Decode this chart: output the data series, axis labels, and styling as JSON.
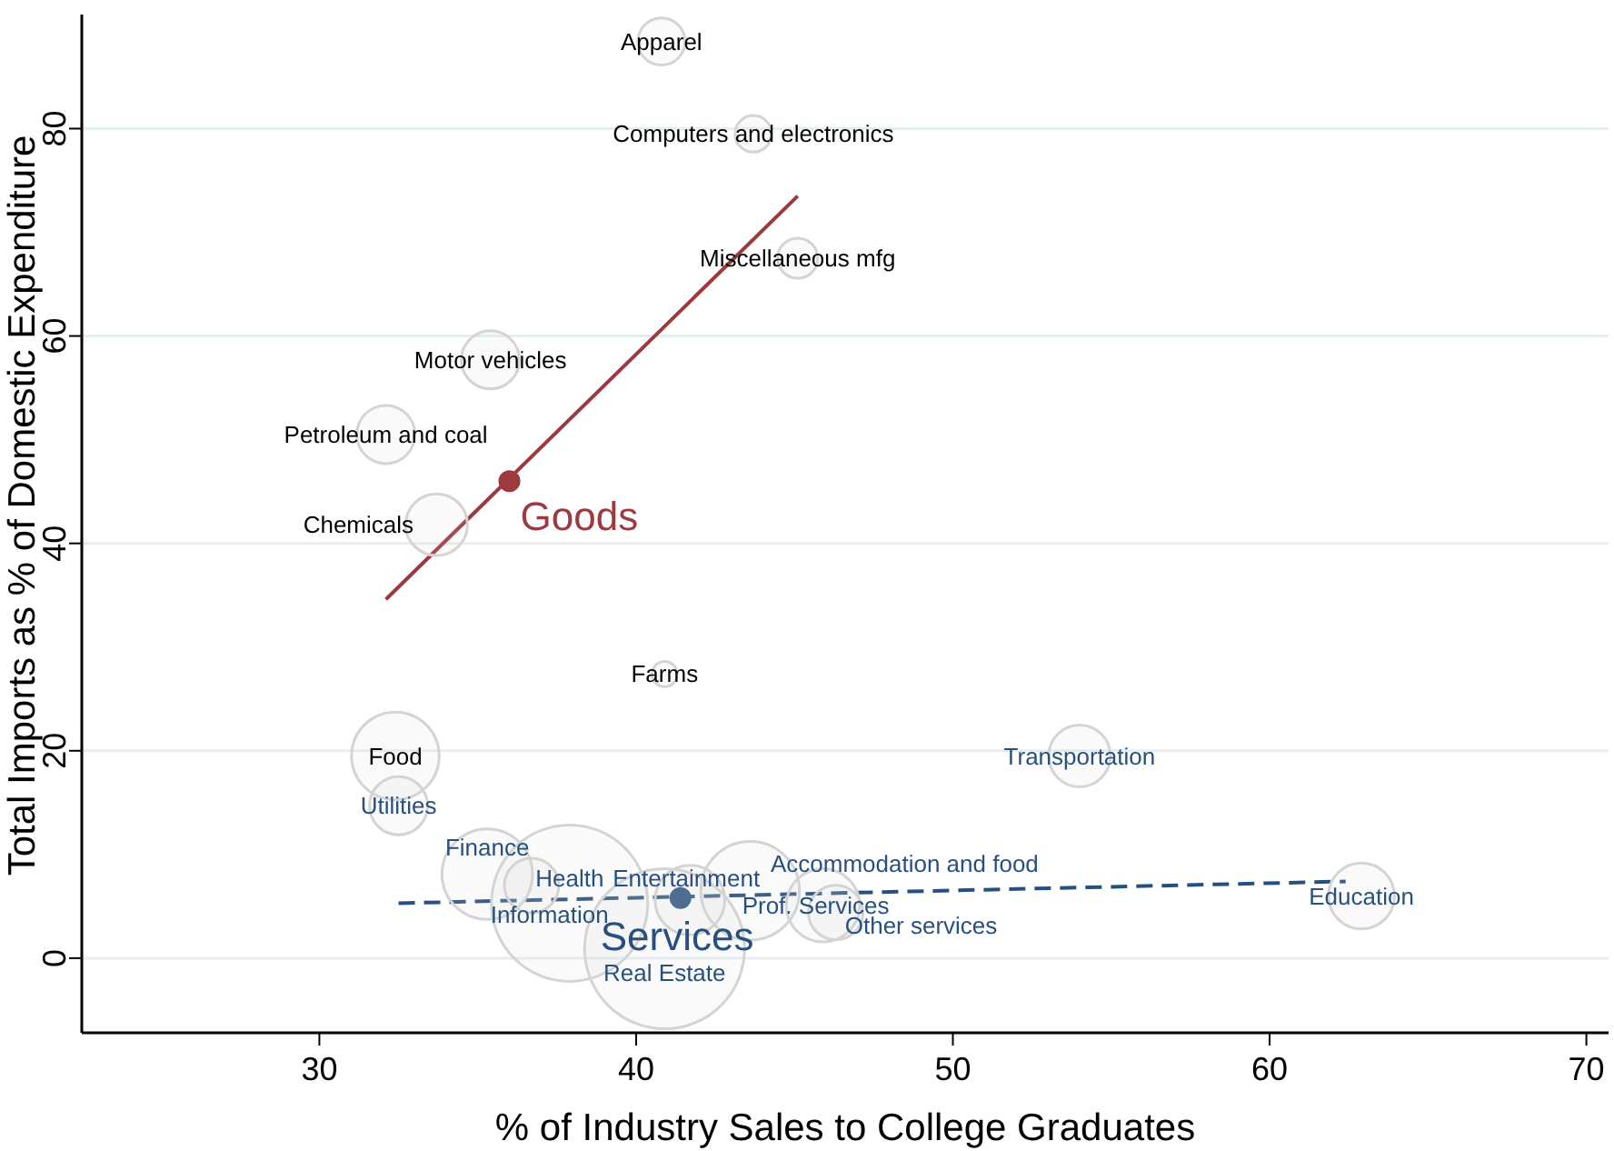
{
  "chart_data": {
    "type": "scatter",
    "xlabel": "% of Industry Sales to College Graduates",
    "ylabel": "Total Imports as % of Domestic Expenditure",
    "xlim": [
      22.5,
      70.7
    ],
    "ylim": [
      -7.2,
      91
    ],
    "xticks": [
      30,
      40,
      50,
      60,
      70
    ],
    "yticks": [
      0,
      20,
      40,
      60,
      80
    ],
    "grid": "y",
    "annotations": [
      {
        "text": "Apparel",
        "x": 40.8,
        "y": 88.4
      },
      {
        "text": "Computers and electronics",
        "x": 43.7,
        "y": 79.5
      },
      {
        "text": "Miscellaneous mfg",
        "x": 45.1,
        "y": 67.5
      },
      {
        "text": "Motor vehicles",
        "x": 35.4,
        "y": 57.7
      },
      {
        "text": "Petroleum and coal",
        "x": 32.1,
        "y": 50.5
      },
      {
        "text": "Chemicals",
        "x": 33.7,
        "y": 41.8
      },
      {
        "text": "Farms",
        "x": 40.9,
        "y": 27.4
      },
      {
        "text": "Food",
        "x": 32.4,
        "y": 19.5
      },
      {
        "text": "Transportation",
        "x": 54.0,
        "y": 19.5
      },
      {
        "text": "Utilities",
        "x": 32.5,
        "y": 14.7
      },
      {
        "text": "Finance",
        "x": 35.3,
        "y": 8.1
      },
      {
        "text": "Health",
        "x": 36.7,
        "y": 7.0
      },
      {
        "text": "Information",
        "x": 37.9,
        "y": 5.3
      },
      {
        "text": "Entertainment",
        "x": 41.7,
        "y": 5.6
      },
      {
        "text": "Real Estate",
        "x": 40.9,
        "y": 0.9
      },
      {
        "text": "Accommodation and food",
        "x": 43.6,
        "y": 6.5
      },
      {
        "text": "Prof. Services",
        "x": 45.9,
        "y": 5.1
      },
      {
        "text": "Other services",
        "x": 46.3,
        "y": 4.4
      },
      {
        "text": "Education",
        "x": 62.9,
        "y": 6.0
      }
    ],
    "series": [
      {
        "type": "bubble",
        "color": "#d4d4d4",
        "x": [
          40.8,
          43.7,
          45.1,
          35.4,
          32.1,
          33.7,
          40.9,
          32.4
        ],
        "values": [
          88.4,
          79.5,
          67.5,
          57.7,
          50.5,
          41.8,
          27.4,
          19.5
        ],
        "sizes": [
          0.087,
          0.052,
          0.063,
          0.132,
          0.132,
          0.149,
          0.025,
          0.3
        ]
      },
      {
        "type": "bubble",
        "color": "#d4d4d4",
        "x": [
          54.0,
          32.5,
          35.3,
          36.7,
          37.9,
          41.7,
          40.9,
          43.6,
          45.9,
          46.3,
          62.9
        ],
        "values": [
          19.5,
          14.7,
          8.1,
          7.0,
          5.3,
          5.6,
          0.9,
          6.5,
          5.1,
          4.4,
          6.0
        ],
        "sizes": [
          0.149,
          0.132,
          0.32,
          0.116,
          0.955,
          0.19,
          1,
          0.38,
          0.21,
          0.116,
          0.17
        ]
      },
      {
        "type": "line",
        "color": "#9b3a3f",
        "line_style": "solid",
        "x": [
          32.1,
          45.1
        ],
        "values": [
          34.6,
          73.5
        ]
      },
      {
        "type": "line",
        "color": "#27507e",
        "line_style": "dashed",
        "x": [
          32.5,
          62.4
        ],
        "values": [
          5.3,
          7.4
        ]
      },
      {
        "name": "Goods",
        "color": "#9b3a3f",
        "marker": "circle",
        "x": [
          36.0
        ],
        "values": [
          46.0
        ]
      },
      {
        "name": "Services",
        "color": "#27507e",
        "marker": "circle",
        "x": [
          41.4
        ],
        "values": [
          5.8
        ]
      }
    ]
  }
}
